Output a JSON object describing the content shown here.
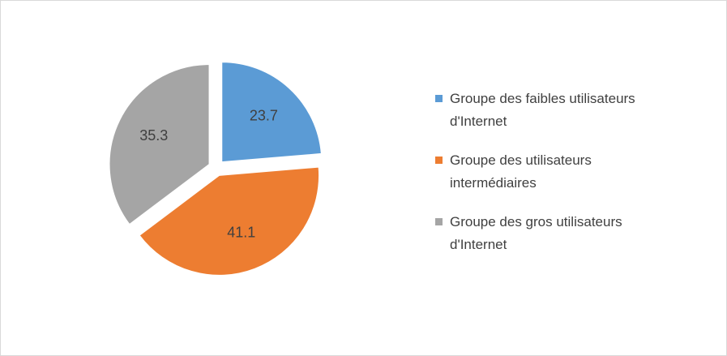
{
  "chart_data": {
    "type": "pie",
    "categories": [
      "Groupe des faibles utilisateurs d'Internet",
      "Groupe des utilisateurs intermédiaires",
      "Groupe des gros utilisateurs d'Internet"
    ],
    "values": [
      23.7,
      41.1,
      35.3
    ],
    "colors": [
      "#5b9bd5",
      "#ed7d31",
      "#a5a5a5"
    ],
    "legend": "right"
  }
}
